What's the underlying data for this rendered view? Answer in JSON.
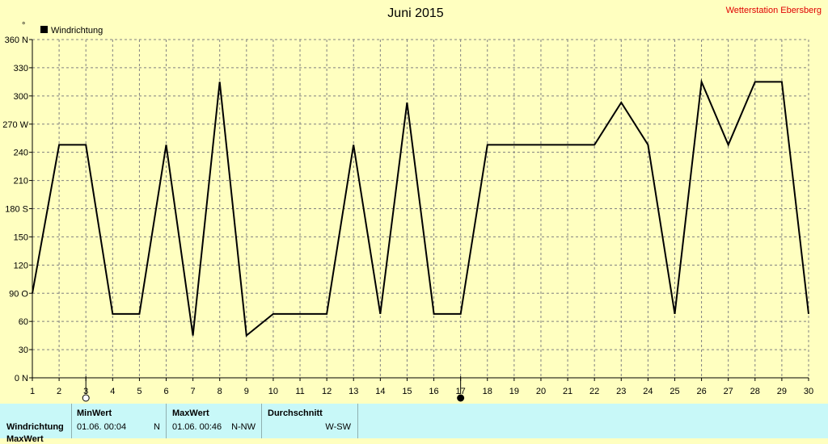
{
  "chart_data": {
    "type": "line",
    "title": "Juni 2015",
    "station": "Wetterstation Ebersberg",
    "legend": [
      "Windrichtung"
    ],
    "legend_placement": "top-left",
    "grid": true,
    "x": [
      1,
      2,
      3,
      4,
      5,
      6,
      7,
      8,
      9,
      10,
      11,
      12,
      13,
      14,
      15,
      16,
      17,
      18,
      19,
      20,
      21,
      22,
      23,
      24,
      25,
      26,
      27,
      28,
      29,
      30
    ],
    "xlim": [
      1,
      30
    ],
    "ylim": [
      0,
      360
    ],
    "y_ticks": [
      "0 N",
      "30",
      "60",
      "90 O",
      "120",
      "150",
      "180 S",
      "210",
      "240",
      "270 W",
      "300",
      "330",
      "360 N"
    ],
    "y_tick_values": [
      0,
      30,
      60,
      90,
      120,
      150,
      180,
      210,
      240,
      270,
      300,
      330,
      360
    ],
    "series": [
      {
        "name": "Windrichtung",
        "points": [
          [
            1,
            90
          ],
          [
            2,
            248
          ],
          [
            3,
            248
          ],
          [
            4,
            68
          ],
          [
            5,
            68
          ],
          [
            6,
            248
          ],
          [
            7,
            45
          ],
          [
            8,
            315
          ],
          [
            9,
            45
          ],
          [
            10,
            68
          ],
          [
            11,
            68
          ],
          [
            12,
            68
          ],
          [
            13,
            248
          ],
          [
            14,
            68
          ],
          [
            15,
            293
          ],
          [
            16,
            68
          ],
          [
            17,
            68
          ],
          [
            18,
            248
          ],
          [
            19,
            248
          ],
          [
            20,
            248
          ],
          [
            21,
            248
          ],
          [
            22,
            248
          ],
          [
            23,
            293
          ],
          [
            24,
            248
          ],
          [
            25,
            68
          ],
          [
            26,
            315
          ],
          [
            27,
            248
          ],
          [
            28,
            315
          ],
          [
            29,
            315
          ],
          [
            30,
            68
          ]
        ]
      }
    ],
    "markers": [
      {
        "x": 3,
        "type": "min"
      },
      {
        "x": 17,
        "type": "max"
      }
    ]
  },
  "stats": {
    "row1_label": "Windrichtung",
    "row2_label": "MaxWert",
    "min_header": "MinWert",
    "min_value": "01.06.  00:04",
    "min_dir": "N",
    "max_header": "MaxWert",
    "max_value": "01.06.  00:46",
    "max_dir": "N-NW",
    "avg_header": "Durchschnitt",
    "avg_value": "W-SW"
  },
  "colors": {
    "background": "#ffffc0",
    "line": "#000000",
    "station": "#e00000",
    "stats_bg": "#c8f8f8"
  }
}
